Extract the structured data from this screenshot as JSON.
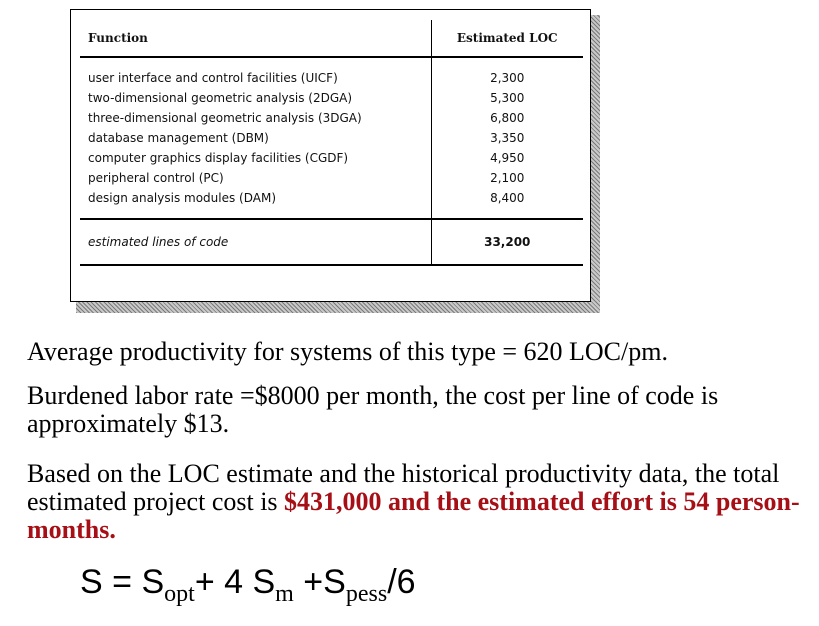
{
  "table": {
    "header": {
      "function": "Function",
      "loc": "Estimated LOC"
    },
    "rows": [
      {
        "function": "user interface and control facilities (UICF)",
        "loc": "2,300"
      },
      {
        "function": "two-dimensional geometric analysis (2DGA)",
        "loc": "5,300"
      },
      {
        "function": "three-dimensional geometric analysis (3DGA)",
        "loc": "6,800"
      },
      {
        "function": "database management (DBM)",
        "loc": "3,350"
      },
      {
        "function": "computer graphics display facilities (CGDF)",
        "loc": "4,950"
      },
      {
        "function": "peripheral control (PC)",
        "loc": "2,100"
      },
      {
        "function": "design analysis modules (DAM)",
        "loc": "8,400"
      }
    ],
    "total": {
      "label": "estimated lines of code",
      "value": "33,200"
    }
  },
  "paragraphs": {
    "p1": "Average productivity for systems of this type = 620 LOC/pm.",
    "p2": "Burdened labor rate =$8000 per month, the cost per line of code is approximately $13.",
    "p3_plain": "Based on the LOC estimate and the historical productivity data, the total estimated project cost is ",
    "p3_highlight": "$431,000 and the estimated effort is 54 person-months."
  },
  "formula": {
    "lhs": "S",
    "eq": "= ",
    "s_opt": "S",
    "opt_sub": "opt",
    "plus_four": "+ 4 ",
    "s_m": "S",
    "m_sub": "m",
    "plus": " +",
    "s_pess": "S",
    "pess_sub": "pess",
    "div": "/6"
  },
  "colors": {
    "highlight": "#a50f15"
  }
}
